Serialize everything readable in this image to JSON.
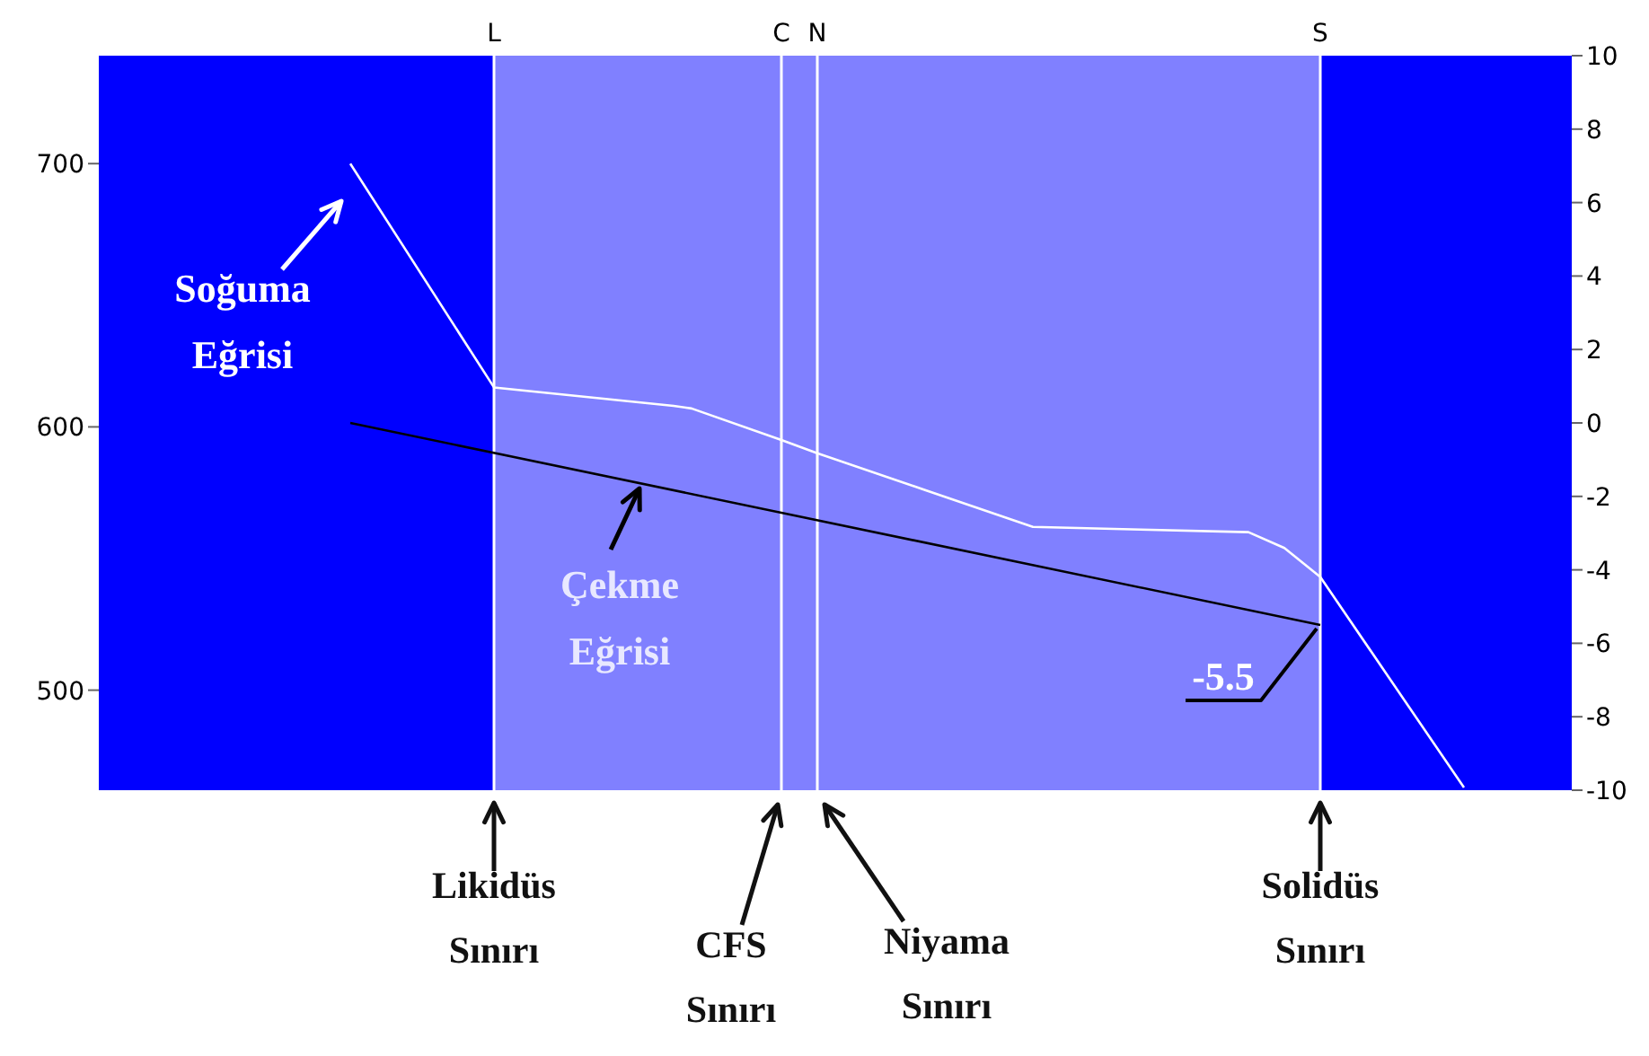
{
  "chart_data": {
    "type": "line",
    "categories": [
      null,
      null,
      null,
      null,
      null,
      null,
      null,
      null,
      null,
      null,
      null,
      null,
      null,
      null,
      null,
      null,
      null,
      null,
      null,
      null,
      null,
      null,
      "L",
      null,
      null,
      null,
      null,
      null,
      null,
      null,
      null,
      null,
      null,
      null,
      null,
      null,
      null,
      null,
      "C",
      null,
      "N",
      null,
      null,
      null,
      null,
      null,
      null,
      null,
      null,
      null,
      null,
      null,
      null,
      null,
      null,
      null,
      null,
      null,
      null,
      null,
      null,
      null,
      null,
      null,
      null,
      null,
      null,
      null,
      "S",
      null,
      null,
      null,
      null,
      null,
      null,
      null,
      null,
      null,
      null,
      null,
      null,
      null,
      null
    ],
    "series": [
      {
        "name": "Soğuma Eğrisi",
        "color": "#ffffff",
        "values": [
          null,
          null,
          null,
          null,
          null,
          null,
          null,
          null,
          null,
          null,
          null,
          null,
          null,
          null,
          700,
          null,
          null,
          null,
          null,
          null,
          null,
          null,
          615,
          null,
          null,
          null,
          null,
          null,
          null,
          null,
          null,
          null,
          608,
          607,
          null,
          null,
          null,
          null,
          595,
          null,
          590,
          null,
          null,
          null,
          null,
          null,
          576,
          null,
          null,
          null,
          null,
          null,
          562,
          null,
          null,
          null,
          null,
          null,
          561,
          null,
          null,
          null,
          null,
          null,
          560,
          null,
          554,
          null,
          543,
          null,
          null,
          null,
          null,
          null,
          null,
          null,
          463,
          null,
          null,
          null,
          null,
          null,
          null
        ]
      },
      {
        "name": "Çekme Eğrisi",
        "color": "#000000",
        "axis": "y2",
        "values": [
          null,
          null,
          null,
          null,
          null,
          null,
          null,
          null,
          null,
          null,
          null,
          null,
          null,
          null,
          0,
          null,
          null,
          null,
          null,
          null,
          null,
          null,
          null,
          null,
          null,
          null,
          null,
          null,
          null,
          null,
          null,
          null,
          null,
          null,
          null,
          null,
          null,
          null,
          null,
          null,
          null,
          null,
          null,
          null,
          null,
          null,
          null,
          null,
          null,
          null,
          null,
          null,
          null,
          null,
          null,
          null,
          null,
          null,
          null,
          null,
          null,
          null,
          null,
          null,
          null,
          null,
          null,
          null,
          -5.5,
          null,
          null,
          null,
          null,
          null,
          null,
          null,
          null,
          null,
          null,
          null,
          null,
          null,
          null
        ]
      }
    ],
    "ylim": [
      462,
      741
    ],
    "yticks": [
      500,
      600,
      700
    ],
    "y2lim": [
      -10,
      10
    ],
    "y2ticks": [
      -10,
      -8,
      -6,
      -4,
      -2,
      0,
      2,
      4,
      6,
      8,
      10
    ],
    "ref_lines": [
      {
        "axis": "x",
        "value": "L",
        "label": "Likidüs Sınırı",
        "color": "#ffffff"
      },
      {
        "axis": "x",
        "value": "C",
        "label": "CFS Sınırı",
        "color": "#ffffff"
      },
      {
        "axis": "x",
        "value": "N",
        "label": "Niyama Sınırı",
        "color": "#ffffff"
      },
      {
        "axis": "x",
        "value": "S",
        "label": "Solidüs Sınırı",
        "color": "#ffffff"
      }
    ],
    "bands": [
      {
        "axis": "x",
        "from": "L",
        "to": "S",
        "color": "#8080ff"
      }
    ],
    "annotations": [
      {
        "text": "-5.5",
        "x": "S"
      }
    ],
    "grid": false,
    "legend": "left"
  }
}
